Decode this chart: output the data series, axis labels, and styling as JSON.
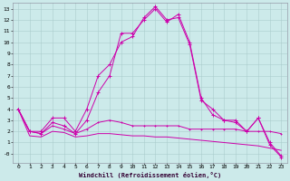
{
  "xlabel": "Windchill (Refroidissement éolien,°C)",
  "background_color": "#cceaea",
  "grid_color": "#aacccc",
  "line_color": "#cc00aa",
  "x_ticks": [
    0,
    1,
    2,
    3,
    4,
    5,
    6,
    7,
    8,
    9,
    10,
    11,
    12,
    13,
    14,
    15,
    16,
    17,
    18,
    19,
    20,
    21,
    22,
    23
  ],
  "y_ticks": [
    0,
    1,
    2,
    3,
    4,
    5,
    6,
    7,
    8,
    9,
    10,
    11,
    12,
    13
  ],
  "ylim": [
    -0.8,
    13.5
  ],
  "xlim": [
    -0.5,
    23.5
  ],
  "series": [
    {
      "x": [
        0,
        1,
        2,
        3,
        4,
        5,
        6,
        7,
        8,
        9,
        10,
        11,
        12,
        13,
        14,
        15,
        16,
        17,
        18,
        19,
        20,
        21,
        22,
        23
      ],
      "y": [
        4,
        2,
        2,
        3.2,
        3.2,
        2,
        4,
        7,
        8,
        10,
        10.5,
        12.2,
        13.2,
        12.0,
        12.2,
        9.8,
        4.8,
        4,
        3,
        3,
        2,
        3.2,
        1,
        -0.2
      ]
    },
    {
      "x": [
        0,
        1,
        2,
        3,
        4,
        5,
        6,
        7,
        8,
        9,
        10,
        11,
        12,
        13,
        14,
        15,
        16,
        17,
        18,
        19,
        20,
        21,
        22,
        23
      ],
      "y": [
        4,
        2,
        1.8,
        2.8,
        2.5,
        1.8,
        3,
        5.5,
        7,
        10.8,
        10.8,
        12.0,
        13.0,
        11.8,
        12.5,
        10.0,
        5.0,
        3.5,
        3.0,
        2.8,
        2.0,
        3.2,
        0.8,
        -0.3
      ]
    },
    {
      "x": [
        0,
        1,
        2,
        3,
        4,
        5,
        6,
        7,
        8,
        9,
        10,
        11,
        12,
        13,
        14,
        15,
        16,
        17,
        18,
        19,
        20,
        21,
        22,
        23
      ],
      "y": [
        4,
        2,
        1.8,
        2.5,
        2.2,
        1.8,
        2.2,
        2.8,
        3.0,
        2.8,
        2.5,
        2.5,
        2.5,
        2.5,
        2.5,
        2.2,
        2.2,
        2.2,
        2.2,
        2.2,
        2.0,
        2.0,
        2.0,
        1.8
      ]
    },
    {
      "x": [
        0,
        1,
        2,
        3,
        4,
        5,
        6,
        7,
        8,
        9,
        10,
        11,
        12,
        13,
        14,
        15,
        16,
        17,
        18,
        19,
        20,
        21,
        22,
        23
      ],
      "y": [
        4,
        1.6,
        1.5,
        2.0,
        1.9,
        1.5,
        1.6,
        1.8,
        1.8,
        1.7,
        1.6,
        1.6,
        1.5,
        1.5,
        1.4,
        1.3,
        1.2,
        1.1,
        1.0,
        0.9,
        0.8,
        0.7,
        0.5,
        0.3
      ]
    }
  ]
}
